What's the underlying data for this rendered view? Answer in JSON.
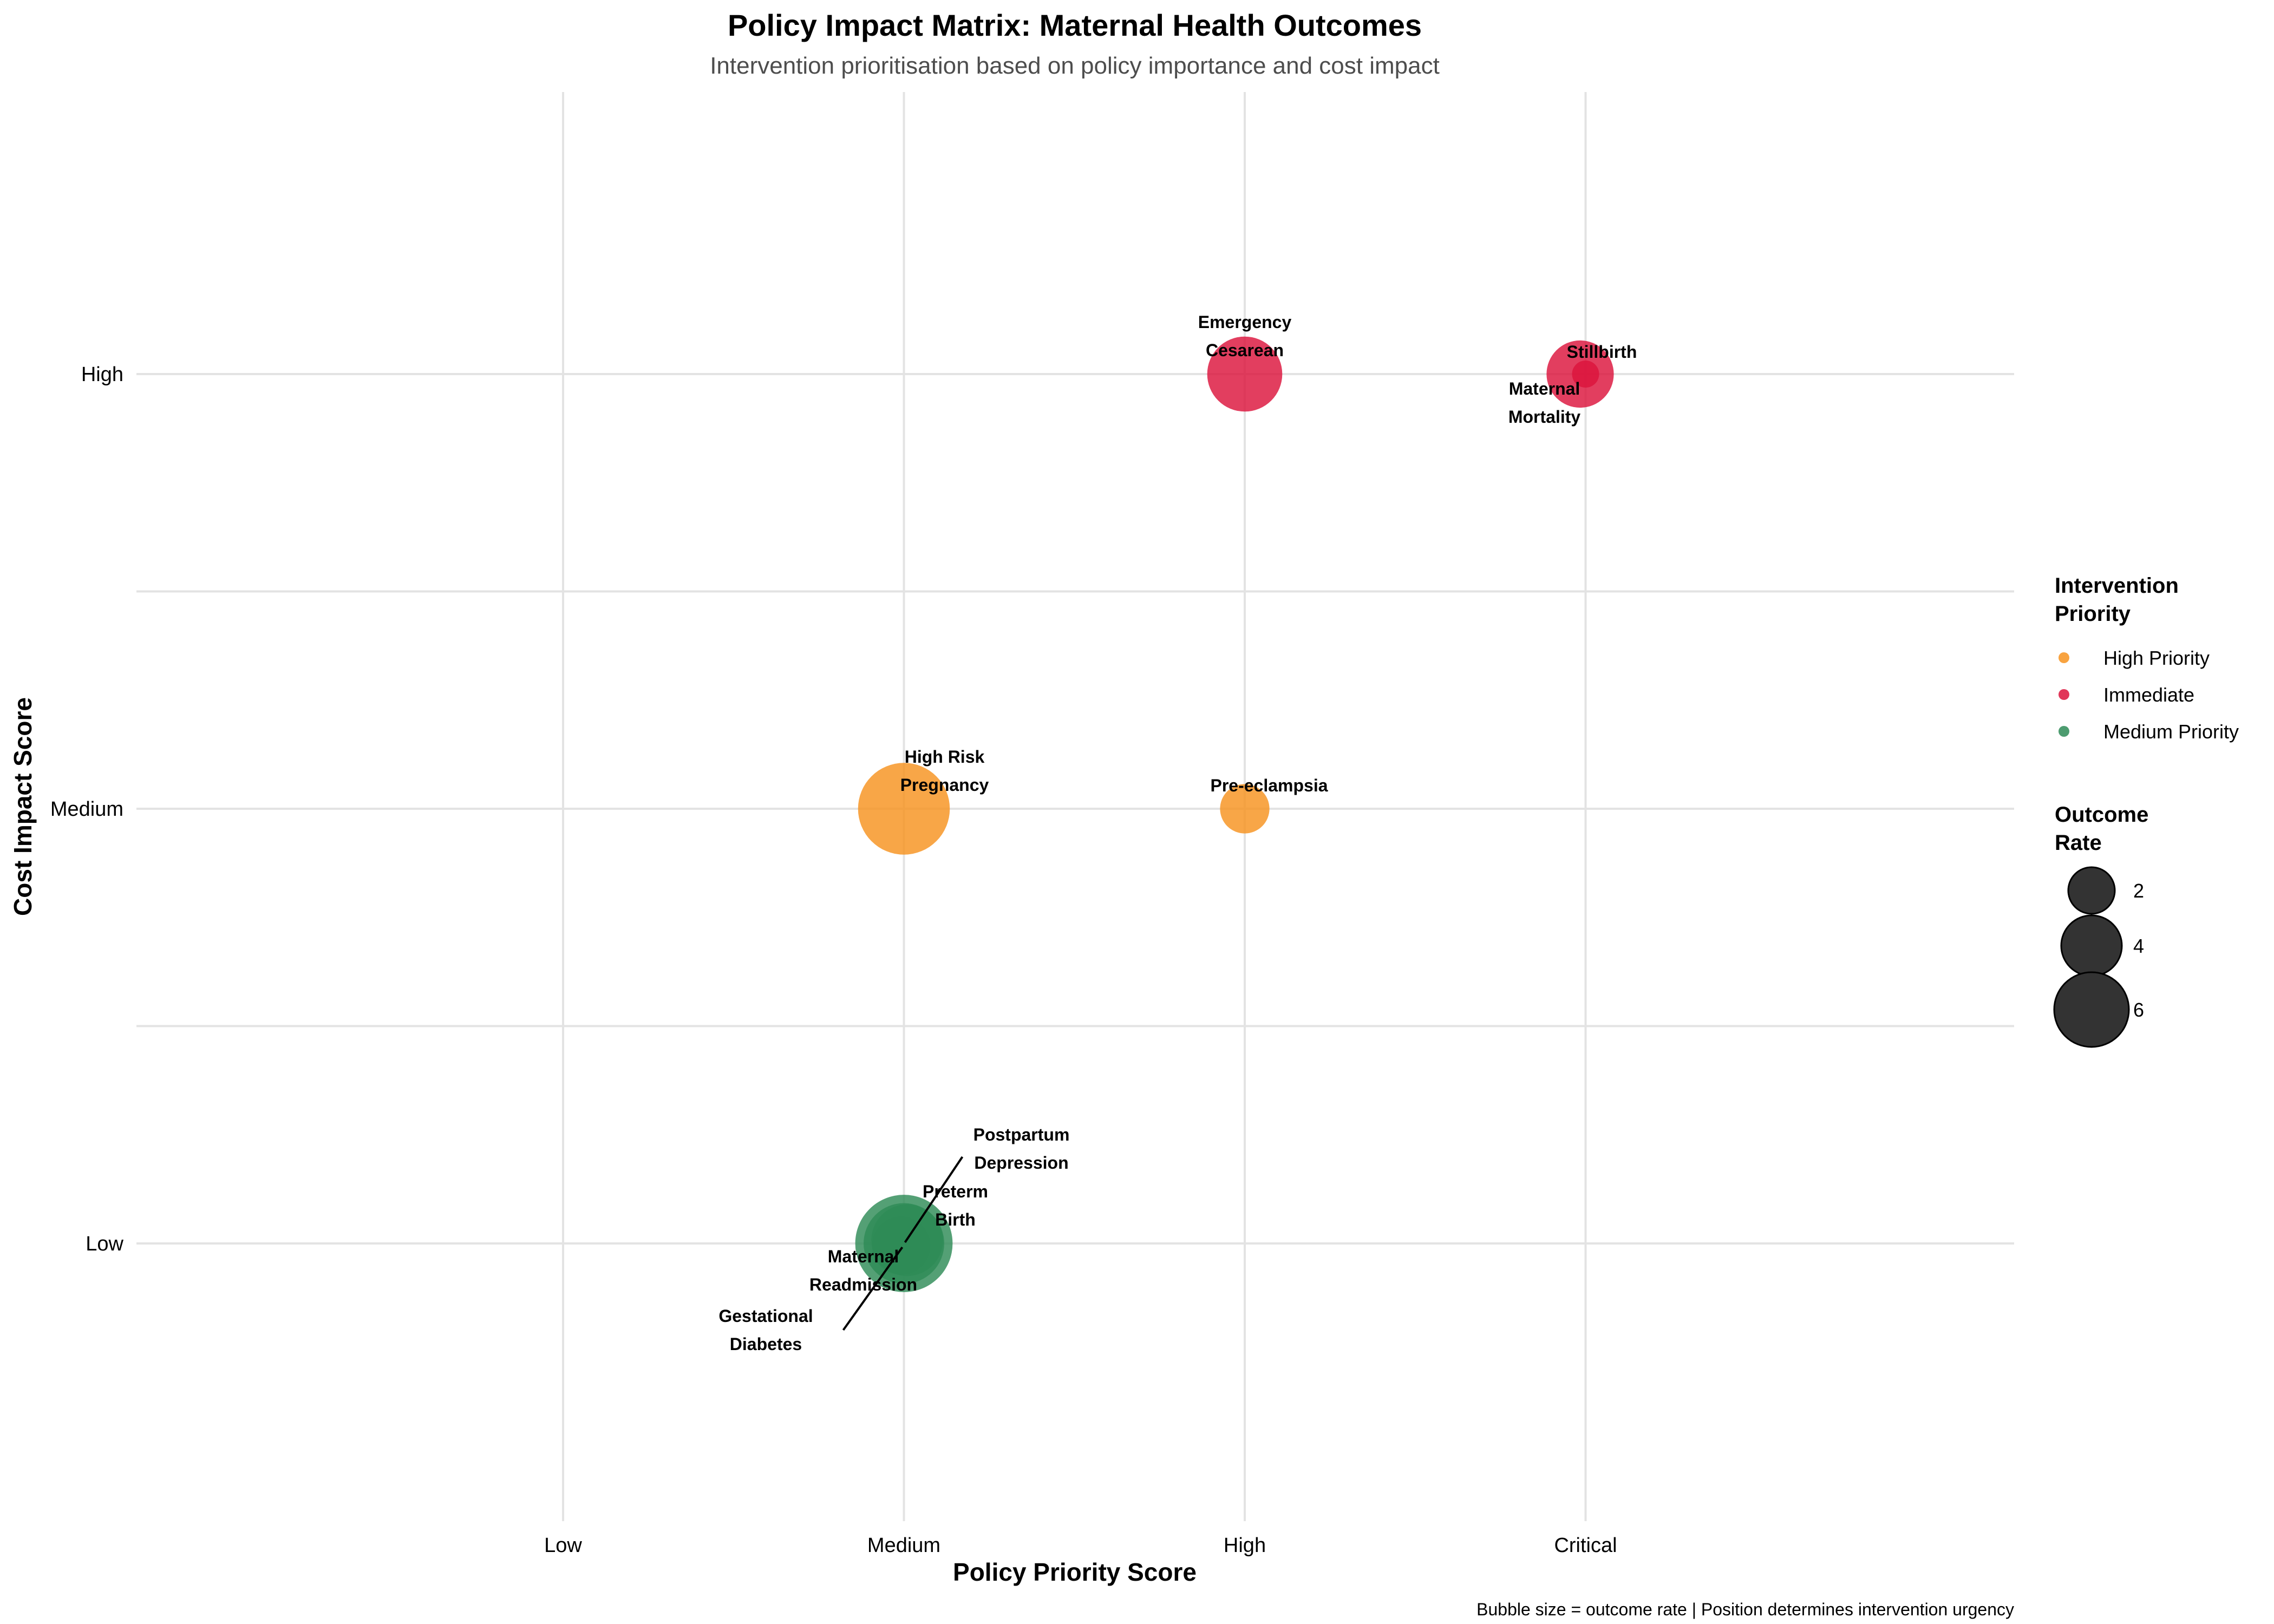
{
  "chart_data": {
    "type": "scatter",
    "title": "Policy Impact Matrix: Maternal Health Outcomes",
    "subtitle": "Intervention prioritisation based on policy importance and cost impact",
    "xlabel": "Policy Priority Score",
    "ylabel": "Cost Impact Score",
    "x_categories": [
      "Low",
      "Medium",
      "High",
      "Critical"
    ],
    "y_categories": [
      "Low",
      "Medium",
      "High"
    ],
    "caption": "Bubble size = outcome rate | Position determines intervention urgency",
    "grid": true,
    "legend_placement": "right",
    "color_legend": {
      "title": [
        "Intervention",
        "Priority"
      ],
      "entries": [
        {
          "name": "High Priority",
          "color": "#F7931E"
        },
        {
          "name": "Immediate",
          "color": "#DC143C"
        },
        {
          "name": "Medium Priority",
          "color": "#2E8B57"
        }
      ]
    },
    "size_legend": {
      "title": [
        "Outcome",
        "Rate"
      ],
      "values": [
        2,
        4,
        6
      ],
      "labels": [
        "2",
        "4",
        "6"
      ]
    },
    "points": [
      {
        "label": [
          "Emergency",
          "Cesarean"
        ],
        "x": "High",
        "y": "High",
        "size": 4.5,
        "group": "Immediate"
      },
      {
        "label": [
          "Stillbirth"
        ],
        "x": "Critical",
        "y": "High",
        "size": 3.8,
        "group": "Immediate"
      },
      {
        "label": [
          "Maternal",
          "Mortality"
        ],
        "x": "Critical",
        "y": "High",
        "size": 0.2,
        "group": "Immediate"
      },
      {
        "label": [
          "High Risk",
          "Pregnancy"
        ],
        "x": "Medium",
        "y": "Medium",
        "size": 6.0,
        "group": "High Priority"
      },
      {
        "label": [
          "Pre-eclampsia"
        ],
        "x": "High",
        "y": "Medium",
        "size": 2.2,
        "group": "High Priority"
      },
      {
        "label": [
          "Postpartum",
          "Depression"
        ],
        "x": "Medium",
        "y": "Low",
        "size": 5.0,
        "group": "Medium Priority"
      },
      {
        "label": [
          "Preterm",
          "Birth"
        ],
        "x": "Medium",
        "y": "Low",
        "size": 4.2,
        "group": "Medium Priority"
      },
      {
        "label": [
          "Maternal",
          "Readmission"
        ],
        "x": "Medium",
        "y": "Low",
        "size": 3.0,
        "group": "Medium Priority"
      },
      {
        "label": [
          "Gestational",
          "Diabetes"
        ],
        "x": "Medium",
        "y": "Low",
        "size": 6.5,
        "group": "Medium Priority"
      }
    ]
  }
}
